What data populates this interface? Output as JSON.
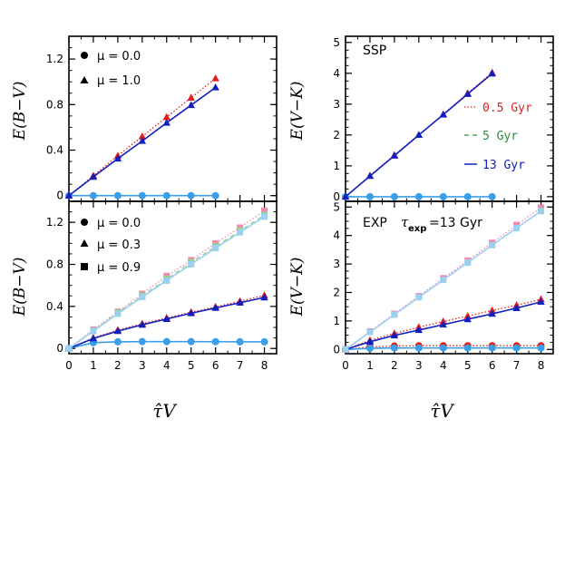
{
  "colors": {
    "red": "#e3211c",
    "green": "#2e8b3a",
    "blue": "#1020c0",
    "cyan": "#3a9ee8",
    "pink": "#f08bb0",
    "lightgreen": "#8fd68f",
    "lightblue": "#9bd0f0"
  },
  "legend": {
    "bv_top": [
      {
        "symbol": "circle",
        "label": "μ = 0.0"
      },
      {
        "symbol": "triangle",
        "label": "μ = 1.0"
      }
    ],
    "bv_bottom": [
      {
        "symbol": "circle",
        "label": "μ = 0.0"
      },
      {
        "symbol": "triangle",
        "label": "μ = 0.3"
      },
      {
        "symbol": "square",
        "label": "μ = 0.9"
      }
    ],
    "ages": [
      {
        "style": "dotted",
        "color": "red",
        "label": "0.5 Gyr"
      },
      {
        "style": "dashed",
        "color": "green",
        "label": "5 Gyr"
      },
      {
        "style": "solid",
        "color": "blue",
        "label": "13 Gyr"
      }
    ]
  },
  "panel_labels": {
    "ssp": "SSP",
    "exp_prefix": "EXP",
    "exp_tau": "τ",
    "exp_sub": "exp",
    "exp_suffix": "=13 Gyr"
  },
  "chart_data": [
    {
      "id": "top-left",
      "type": "line",
      "ylabel": "E(B−V)",
      "xlabel": "",
      "xlim": [
        0,
        8.5
      ],
      "ylim": [
        -0.05,
        1.4
      ],
      "xticks": [],
      "yticks": [
        0,
        0.4,
        0.8,
        1.2
      ],
      "yticklabels": [
        "0",
        "0.4",
        "0.8",
        "1.2"
      ],
      "series": [
        {
          "marker": "circle",
          "line": "solid",
          "color": "cyan",
          "x": [
            0,
            1,
            2,
            3,
            4,
            5,
            6
          ],
          "y": [
            0,
            0,
            0,
            0,
            0,
            0,
            0
          ]
        },
        {
          "marker": "triangle",
          "line": "dotted",
          "color": "red",
          "x": [
            0,
            1,
            2,
            3,
            4,
            5,
            6
          ],
          "y": [
            0,
            0.175,
            0.35,
            0.52,
            0.69,
            0.86,
            1.03
          ]
        },
        {
          "marker": "triangle",
          "line": "solid",
          "color": "blue",
          "x": [
            0,
            1,
            2,
            3,
            4,
            5,
            6
          ],
          "y": [
            0,
            0.165,
            0.325,
            0.48,
            0.64,
            0.795,
            0.95
          ]
        }
      ]
    },
    {
      "id": "top-right",
      "type": "line",
      "ylabel": "E(V−K)",
      "xlabel": "",
      "xlim": [
        0,
        8.5
      ],
      "ylim": [
        -0.15,
        5.2
      ],
      "xticks": [],
      "yticks": [
        0,
        1,
        2,
        3,
        4,
        5
      ],
      "yticklabels": [
        "0",
        "1",
        "2",
        "3",
        "4",
        "5"
      ],
      "series": [
        {
          "marker": "circle",
          "line": "solid",
          "color": "cyan",
          "x": [
            0,
            1,
            2,
            3,
            4,
            5,
            6
          ],
          "y": [
            0,
            0,
            0,
            0,
            0,
            0,
            0
          ]
        },
        {
          "marker": "triangle",
          "line": "dotted",
          "color": "red",
          "x": [
            0,
            1,
            2,
            3,
            4,
            5,
            6
          ],
          "y": [
            0,
            0.68,
            1.35,
            2.0,
            2.67,
            3.35,
            4.02
          ]
        },
        {
          "marker": "triangle",
          "line": "solid",
          "color": "blue",
          "x": [
            0,
            1,
            2,
            3,
            4,
            5,
            6
          ],
          "y": [
            0,
            0.67,
            1.33,
            2.0,
            2.66,
            3.33,
            3.99
          ]
        }
      ]
    },
    {
      "id": "bottom-left",
      "type": "line",
      "ylabel": "E(B−V)",
      "xlabel": "τ̂V",
      "xlim": [
        0,
        8.5
      ],
      "ylim": [
        -0.05,
        1.4
      ],
      "xticks": [
        0,
        1,
        2,
        3,
        4,
        5,
        6,
        7,
        8
      ],
      "xticklabels": [
        "0",
        "1",
        "2",
        "3",
        "4",
        "5",
        "6",
        "7",
        "8"
      ],
      "yticks": [
        0,
        0.4,
        0.8,
        1.2
      ],
      "yticklabels": [
        "0",
        "0.4",
        "0.8",
        "1.2"
      ],
      "series": [
        {
          "marker": "circle",
          "line": "solid",
          "color": "cyan",
          "x": [
            0,
            1,
            2,
            3,
            4,
            5,
            6,
            7,
            8
          ],
          "y": [
            0,
            0.055,
            0.063,
            0.065,
            0.065,
            0.065,
            0.064,
            0.063,
            0.063
          ]
        },
        {
          "marker": "triangle",
          "line": "dotted",
          "color": "red",
          "x": [
            0,
            1,
            2,
            3,
            4,
            5,
            6,
            7,
            8
          ],
          "y": [
            0,
            0.1,
            0.175,
            0.235,
            0.29,
            0.345,
            0.395,
            0.45,
            0.505
          ]
        },
        {
          "marker": "triangle",
          "line": "solid",
          "color": "blue",
          "x": [
            0,
            1,
            2,
            3,
            4,
            5,
            6,
            7,
            8
          ],
          "y": [
            0,
            0.095,
            0.165,
            0.225,
            0.28,
            0.335,
            0.385,
            0.435,
            0.485
          ]
        },
        {
          "marker": "square",
          "line": "dotted",
          "color": "pink",
          "x": [
            0,
            1,
            2,
            3,
            4,
            5,
            6,
            7,
            8
          ],
          "y": [
            0,
            0.18,
            0.35,
            0.52,
            0.69,
            0.84,
            1.0,
            1.15,
            1.31
          ]
        },
        {
          "marker": "square",
          "line": "dashed",
          "color": "lightgreen",
          "x": [
            0,
            1,
            2,
            3,
            4,
            5,
            6,
            7,
            8
          ],
          "y": [
            0,
            0.17,
            0.34,
            0.5,
            0.66,
            0.82,
            0.97,
            1.12,
            1.27
          ]
        },
        {
          "marker": "square",
          "line": "solid",
          "color": "lightblue",
          "x": [
            0,
            1,
            2,
            3,
            4,
            5,
            6,
            7,
            8
          ],
          "y": [
            0,
            0.165,
            0.33,
            0.49,
            0.645,
            0.8,
            0.955,
            1.105,
            1.255
          ]
        }
      ]
    },
    {
      "id": "bottom-right",
      "type": "line",
      "ylabel": "E(V−K)",
      "xlabel": "τ̂V",
      "xlim": [
        0,
        8.5
      ],
      "ylim": [
        -0.15,
        5.2
      ],
      "xticks": [
        0,
        1,
        2,
        3,
        4,
        5,
        6,
        7,
        8
      ],
      "xticklabels": [
        "0",
        "1",
        "2",
        "3",
        "4",
        "5",
        "6",
        "7",
        "8"
      ],
      "yticks": [
        0,
        1,
        2,
        3,
        4,
        5
      ],
      "yticklabels": [
        "0",
        "1",
        "2",
        "3",
        "4",
        "5"
      ],
      "series": [
        {
          "marker": "circle",
          "line": "dotted",
          "color": "red",
          "x": [
            0,
            1,
            2,
            3,
            4,
            5,
            6,
            7,
            8
          ],
          "y": [
            0,
            0.09,
            0.12,
            0.13,
            0.13,
            0.13,
            0.13,
            0.13,
            0.13
          ]
        },
        {
          "marker": "circle",
          "line": "solid",
          "color": "cyan",
          "x": [
            0,
            1,
            2,
            3,
            4,
            5,
            6,
            7,
            8
          ],
          "y": [
            0,
            0.04,
            0.05,
            0.05,
            0.05,
            0.05,
            0.05,
            0.05,
            0.05
          ]
        },
        {
          "marker": "triangle",
          "line": "dotted",
          "color": "red",
          "x": [
            0,
            1,
            2,
            3,
            4,
            5,
            6,
            7,
            8
          ],
          "y": [
            0,
            0.32,
            0.56,
            0.78,
            0.98,
            1.17,
            1.37,
            1.55,
            1.76
          ]
        },
        {
          "marker": "triangle",
          "line": "solid",
          "color": "blue",
          "x": [
            0,
            1,
            2,
            3,
            4,
            5,
            6,
            7,
            8
          ],
          "y": [
            0,
            0.27,
            0.49,
            0.68,
            0.87,
            1.06,
            1.25,
            1.45,
            1.67
          ]
        },
        {
          "marker": "square",
          "line": "dotted",
          "color": "pink",
          "x": [
            0,
            1,
            2,
            3,
            4,
            5,
            6,
            7,
            8
          ],
          "y": [
            0,
            0.63,
            1.25,
            1.87,
            2.5,
            3.12,
            3.74,
            4.37,
            4.98
          ]
        },
        {
          "marker": "square",
          "line": "solid",
          "color": "lightblue",
          "x": [
            0,
            1,
            2,
            3,
            4,
            5,
            6,
            7,
            8
          ],
          "y": [
            0,
            0.61,
            1.22,
            1.83,
            2.44,
            3.05,
            3.66,
            4.26,
            4.86
          ]
        }
      ]
    }
  ]
}
